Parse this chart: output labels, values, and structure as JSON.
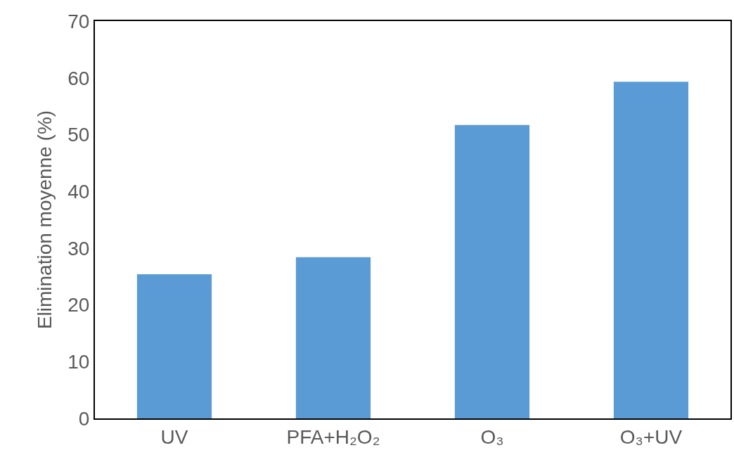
{
  "chart_data": {
    "type": "bar",
    "ylabel": "Elimination moyenne (%)",
    "categories": [
      "UV",
      "PFA+H₂O₂",
      "O₃",
      "O₃+UV"
    ],
    "values": [
      25.4,
      28.4,
      51.7,
      59.3
    ],
    "color": "#5b9bd5",
    "ylim": [
      0,
      70
    ],
    "yticks": [
      0,
      10,
      20,
      30,
      40,
      50,
      60,
      70
    ]
  }
}
